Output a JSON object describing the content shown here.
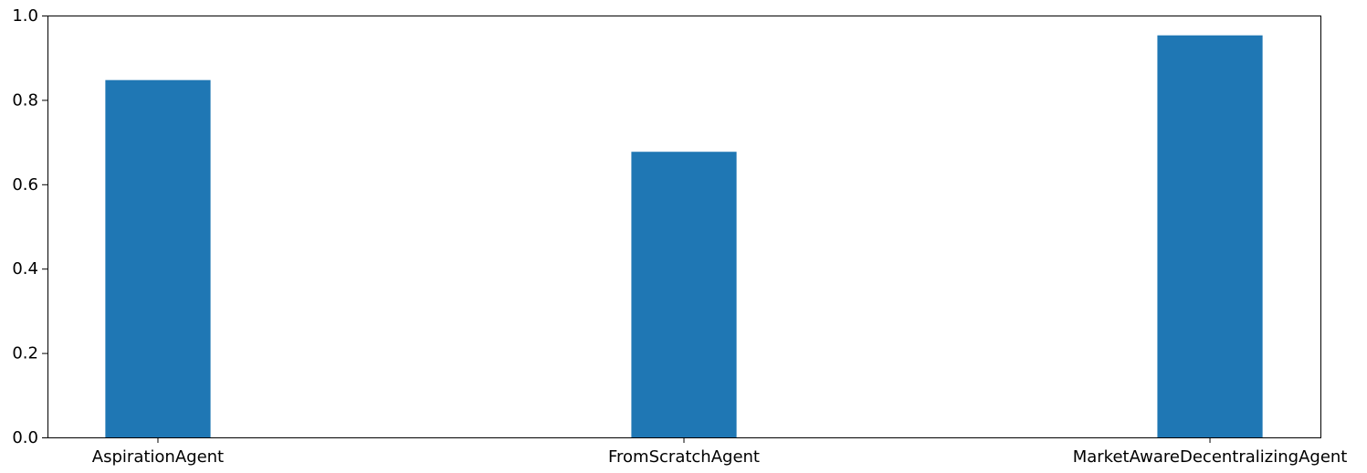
{
  "chart_data": {
    "type": "bar",
    "categories": [
      "AspirationAgent",
      "FromScratchAgent",
      "MarketAwareDecentralizingAgent"
    ],
    "values": [
      0.847,
      0.677,
      0.953
    ],
    "title": "",
    "xlabel": "",
    "ylabel": "",
    "ylim": [
      0,
      1.0
    ],
    "yticks": [
      "0.0",
      "0.2",
      "0.4",
      "0.6",
      "0.8",
      "1.0"
    ],
    "grid": false,
    "bar_color": "#1f77b4"
  }
}
